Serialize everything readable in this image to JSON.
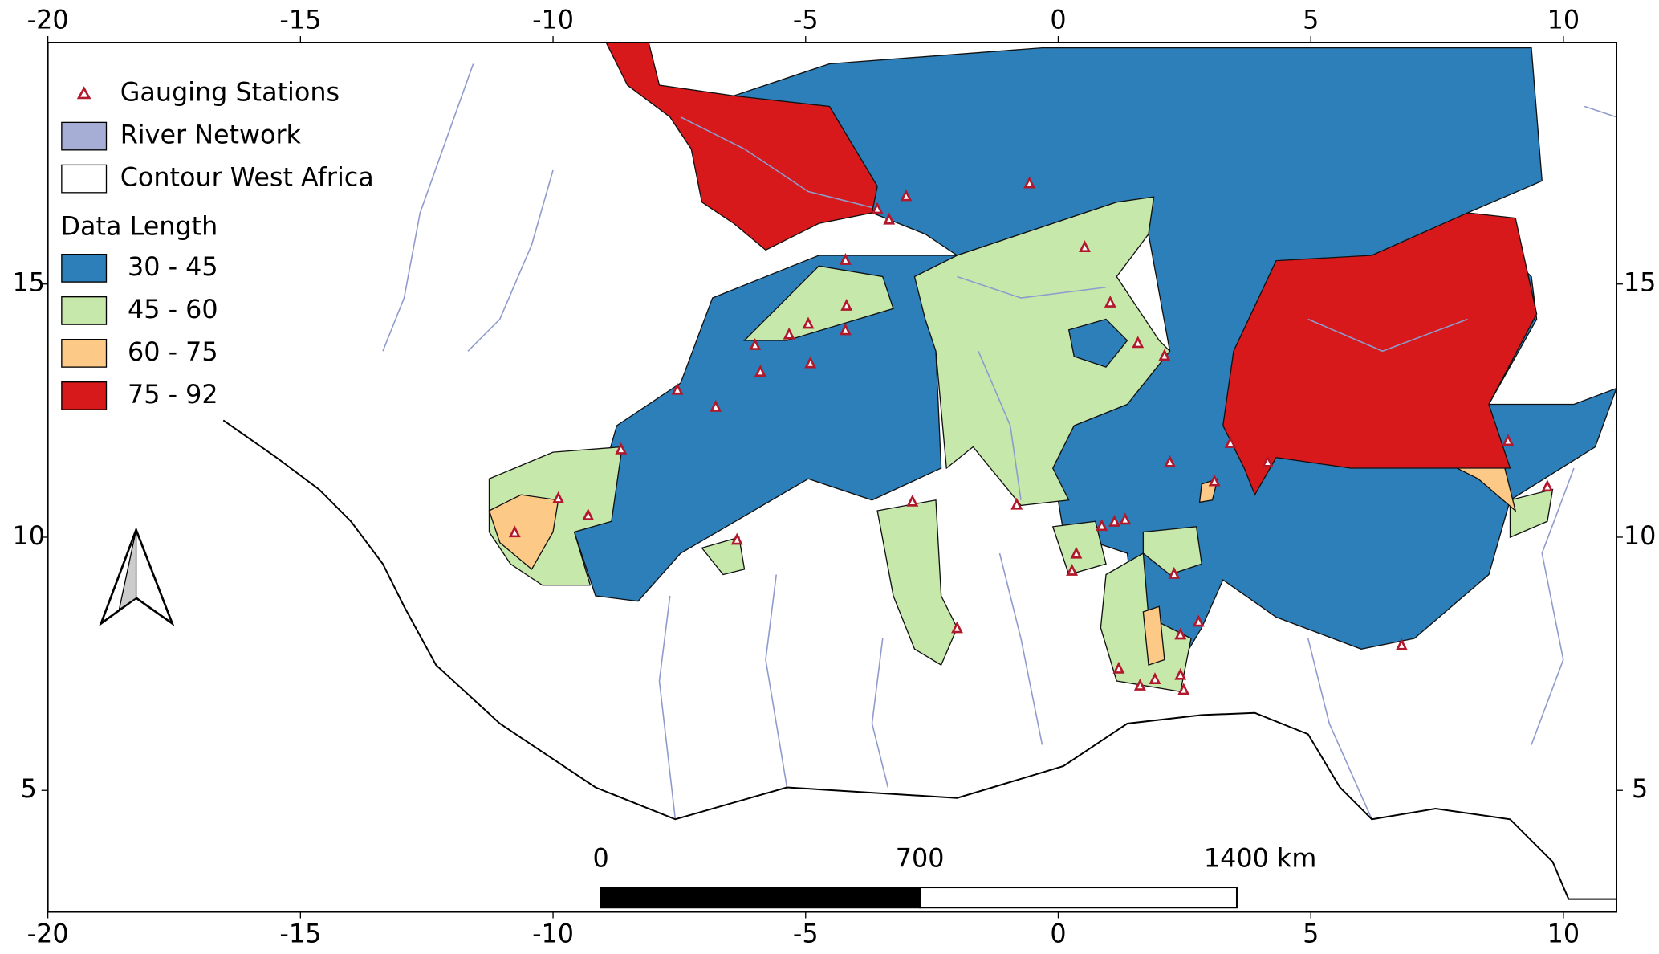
{
  "map": {
    "xlim": [
      -20,
      11.05
    ],
    "ylim": [
      2.6,
      19.77
    ],
    "xticks": [
      -20,
      -15,
      -10,
      -5,
      0,
      5,
      10
    ],
    "yticks": [
      5,
      10,
      15
    ]
  },
  "legend": {
    "items": [
      {
        "label": "Gauging  Stations",
        "color": "#b2182b"
      },
      {
        "label": "River Network",
        "color": "#a6aed6"
      },
      {
        "label": "Contour West Africa",
        "color": "#ffffff"
      }
    ],
    "title": "Data Length",
    "classes": [
      {
        "label": "30 - 45",
        "color": "#2c7fb8"
      },
      {
        "label": "45 - 60",
        "color": "#c6e8ab"
      },
      {
        "label": "60 - 75",
        "color": "#fdc986"
      },
      {
        "label": "75 - 92",
        "color": "#d7191c"
      }
    ]
  },
  "scale_bar": {
    "labels": [
      "0",
      "700",
      "1400 km"
    ]
  }
}
